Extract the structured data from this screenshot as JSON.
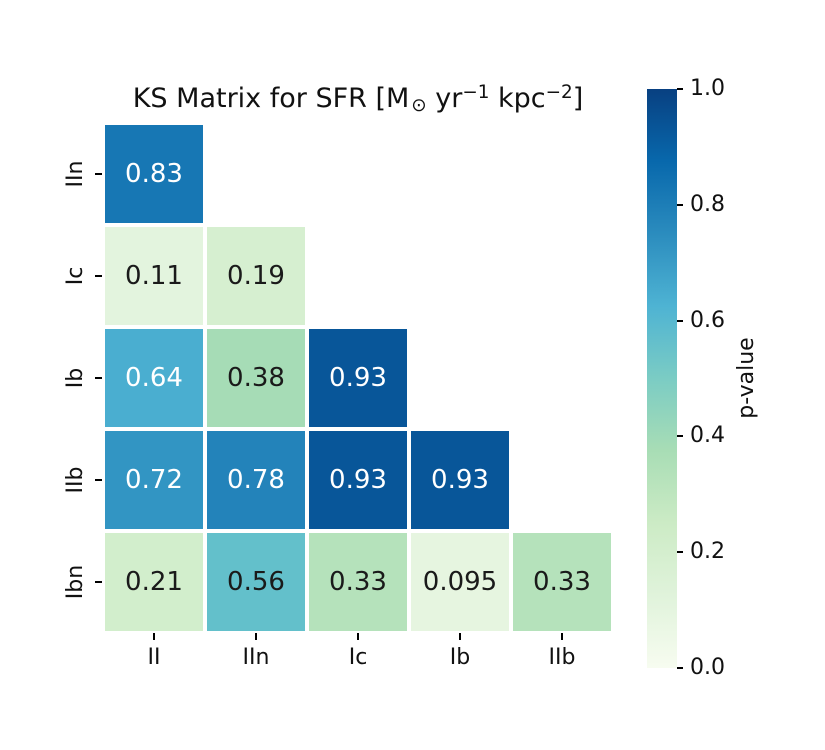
{
  "figure_title": {
    "plain": "KS Matrix for SFR [M⊙ yr−1 kpc−2]",
    "parts": [
      {
        "text": "KS Matrix for SFR [M",
        "style": "normal"
      },
      {
        "text": "⊙",
        "style": "sub"
      },
      {
        "text": " yr",
        "style": "normal"
      },
      {
        "text": "−1",
        "style": "sup"
      },
      {
        "text": " kpc",
        "style": "normal"
      },
      {
        "text": "−2",
        "style": "sup"
      },
      {
        "text": "]",
        "style": "normal"
      }
    ]
  },
  "chart_data": {
    "type": "heatmap",
    "title": "KS Matrix for SFR [M⊙ yr⁻¹ kpc⁻²]",
    "x_categories": [
      "II",
      "IIn",
      "Ic",
      "Ib",
      "IIb"
    ],
    "y_categories": [
      "IIn",
      "Ic",
      "Ib",
      "IIb",
      "Ibn"
    ],
    "values": [
      [
        0.83,
        null,
        null,
        null,
        null
      ],
      [
        0.11,
        0.19,
        null,
        null,
        null
      ],
      [
        0.64,
        0.38,
        0.93,
        null,
        null
      ],
      [
        0.72,
        0.78,
        0.93,
        0.93,
        null
      ],
      [
        0.21,
        0.56,
        0.33,
        0.095,
        0.33
      ]
    ],
    "shape": "lower-triangle",
    "colormap": "GnBu",
    "vmin": 0.0,
    "vmax": 1.0,
    "grid": false,
    "legend": false,
    "colorbar": {
      "label": "p-value",
      "position": "right",
      "ticks": [
        "1.0",
        "0.8",
        "0.6",
        "0.4",
        "0.2",
        "0.0"
      ],
      "gradient_stops": [
        "#f7fcf0",
        "#e0f3db",
        "#ccebc5",
        "#a8ddb5",
        "#7bccc4",
        "#4eb3d3",
        "#2b8cbe",
        "#0868ac",
        "#084081"
      ]
    },
    "cells": [
      {
        "row": 0,
        "col": 0,
        "label": "0.83",
        "bg": "#1777b4",
        "fg": "#ffffff"
      },
      {
        "row": 1,
        "col": 0,
        "label": "0.11",
        "bg": "#e3f4de",
        "fg": "#1a1a1a"
      },
      {
        "row": 1,
        "col": 1,
        "label": "0.19",
        "bg": "#d6efd0",
        "fg": "#1a1a1a"
      },
      {
        "row": 2,
        "col": 0,
        "label": "0.64",
        "bg": "#4aaed0",
        "fg": "#ffffff"
      },
      {
        "row": 2,
        "col": 1,
        "label": "0.38",
        "bg": "#a6dcb6",
        "fg": "#1a1a1a"
      },
      {
        "row": 2,
        "col": 2,
        "label": "0.93",
        "bg": "#085699",
        "fg": "#ffffff"
      },
      {
        "row": 3,
        "col": 0,
        "label": "0.72",
        "bg": "#3295c3",
        "fg": "#ffffff"
      },
      {
        "row": 3,
        "col": 1,
        "label": "0.78",
        "bg": "#2383ba",
        "fg": "#ffffff"
      },
      {
        "row": 3,
        "col": 2,
        "label": "0.93",
        "bg": "#085699",
        "fg": "#ffffff"
      },
      {
        "row": 3,
        "col": 3,
        "label": "0.93",
        "bg": "#085699",
        "fg": "#ffffff"
      },
      {
        "row": 4,
        "col": 0,
        "label": "0.21",
        "bg": "#d2eecc",
        "fg": "#1a1a1a"
      },
      {
        "row": 4,
        "col": 1,
        "label": "0.56",
        "bg": "#63c0cb",
        "fg": "#1a1a1a"
      },
      {
        "row": 4,
        "col": 2,
        "label": "0.33",
        "bg": "#b5e2bb",
        "fg": "#1a1a1a"
      },
      {
        "row": 4,
        "col": 3,
        "label": "0.095",
        "bg": "#e6f5e0",
        "fg": "#1a1a1a"
      },
      {
        "row": 4,
        "col": 4,
        "label": "0.33",
        "bg": "#b5e2bb",
        "fg": "#1a1a1a"
      }
    ]
  }
}
